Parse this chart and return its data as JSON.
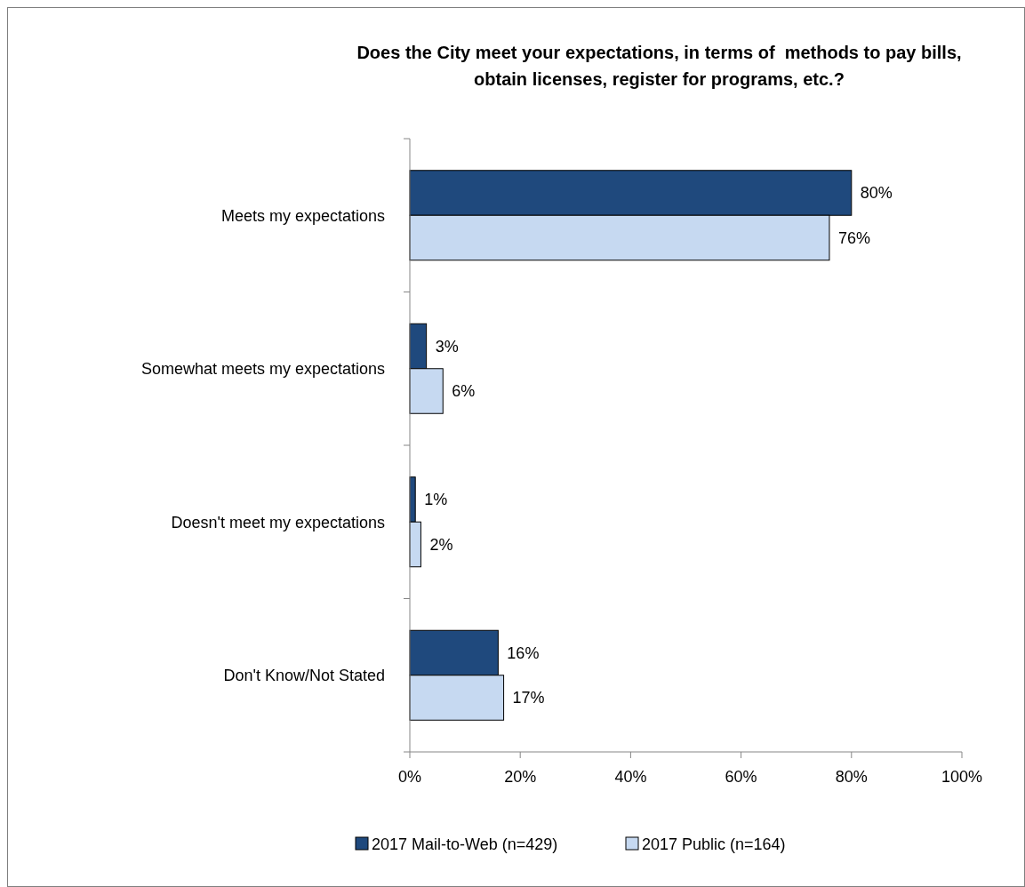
{
  "chart_data": {
    "type": "bar",
    "orientation": "horizontal",
    "title": "Does the City meet your expectations, in terms of  methods to pay bills, obtain licenses, register for programs, etc.?",
    "categories": [
      "Meets my expectations",
      "Somewhat meets my expectations",
      "Doesn't meet my expectations",
      "Don't Know/Not Stated"
    ],
    "series": [
      {
        "name": "2017 Mail-to-Web (n=429)",
        "color": "#1f497d",
        "values": [
          80,
          3,
          1,
          16
        ],
        "value_labels": [
          "80%",
          "3%",
          "1%",
          "16%"
        ]
      },
      {
        "name": "2017 Public (n=164)",
        "color": "#c6d9f1",
        "values": [
          76,
          6,
          2,
          17
        ],
        "value_labels": [
          "76%",
          "6%",
          "2%",
          "17%"
        ]
      }
    ],
    "xlim": [
      0,
      100
    ],
    "xticks": [
      {
        "value": 0,
        "label": "0%"
      },
      {
        "value": 20,
        "label": "20%"
      },
      {
        "value": 40,
        "label": "40%"
      },
      {
        "value": 60,
        "label": "60%"
      },
      {
        "value": 80,
        "label": "80%"
      },
      {
        "value": 100,
        "label": "100%"
      }
    ],
    "grid": false,
    "legend": "bottom"
  }
}
